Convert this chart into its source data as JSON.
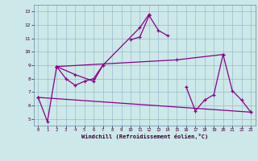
{
  "xlabel": "Windchill (Refroidissement éolien,°C)",
  "bg_color": "#cce8e8",
  "line_color": "#880088",
  "grid_color": "#99bbcc",
  "xlim": [
    -0.5,
    23.5
  ],
  "ylim": [
    4.5,
    13.5
  ],
  "xticks": [
    0,
    1,
    2,
    3,
    4,
    5,
    6,
    7,
    8,
    9,
    10,
    11,
    12,
    13,
    14,
    15,
    16,
    17,
    18,
    19,
    20,
    21,
    22,
    23
  ],
  "yticks": [
    5,
    6,
    7,
    8,
    9,
    10,
    11,
    12,
    13
  ],
  "series1_x": [
    0,
    1,
    2,
    3,
    4,
    5,
    6,
    7,
    10,
    11,
    12,
    13,
    14,
    16,
    17,
    18,
    19,
    20,
    21,
    22,
    23
  ],
  "series1_y": [
    6.6,
    4.8,
    8.9,
    8.0,
    7.5,
    7.8,
    8.0,
    9.0,
    10.9,
    11.1,
    12.7,
    11.6,
    11.2,
    7.4,
    5.6,
    6.4,
    6.8,
    9.8,
    7.1,
    6.4,
    5.5
  ],
  "series1_breaks": [
    7,
    14
  ],
  "series2_x": [
    2,
    4,
    6,
    7,
    11,
    12
  ],
  "series2_y": [
    8.9,
    8.3,
    7.8,
    9.0,
    11.8,
    12.8
  ],
  "series3_x": [
    0,
    23
  ],
  "series3_y": [
    6.6,
    5.5
  ],
  "series4_x": [
    2,
    15,
    20
  ],
  "series4_y": [
    8.9,
    9.4,
    9.8
  ]
}
